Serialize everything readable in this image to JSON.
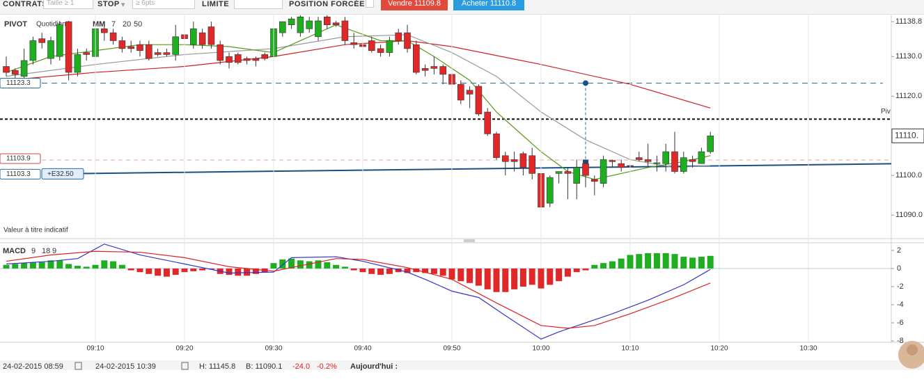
{
  "toolbar": {
    "contracts": "CONTRATS",
    "size": "Taille ≥ 1",
    "stop": "STOP",
    "stop_input": "≥ 6pts",
    "limit": "LIMITE",
    "forced": "POSITION FORCÉE",
    "sell": "Vendre 11109.8",
    "buy": "Acheter 11110.8"
  },
  "chart": {
    "pivot_label": "PIVOT",
    "pivot_period": "Quotidien",
    "ma_label": "MM",
    "note": "Valeur à titre indicatif",
    "ylim": [
      11084.6,
      11140.4
    ],
    "yticks": [
      {
        "value": 11138.8,
        "label": "11138.8"
      },
      {
        "value": 11130,
        "label": "11130.0"
      },
      {
        "value": 11120,
        "label": "11120.0"
      },
      {
        "value": 11100,
        "label": "11100.0"
      },
      {
        "value": 11090,
        "label": "11090.0"
      }
    ],
    "xticks": [
      {
        "value": 10,
        "label": "09:10"
      },
      {
        "value": 20,
        "label": "09:20"
      },
      {
        "value": 30,
        "label": "09:30"
      },
      {
        "value": 40,
        "label": "09:40"
      },
      {
        "value": 50,
        "label": "09:50"
      },
      {
        "value": 60,
        "label": "10:00"
      },
      {
        "value": 70,
        "label": "10:10"
      },
      {
        "value": 80,
        "label": "10:20"
      },
      {
        "value": 90,
        "label": "10:30"
      }
    ],
    "up_color": "#1fae1f",
    "down_color": "#e02828",
    "candles": [
      [
        11127.5,
        11130,
        11125,
        11126
      ],
      [
        11126.5,
        11127,
        11124.5,
        11125.5
      ],
      [
        11125,
        11132,
        11124.5,
        11129
      ],
      [
        11129,
        11135,
        11128,
        11134
      ],
      [
        11134.5,
        11136,
        11132,
        11133.5
      ],
      [
        11129.5,
        11135,
        11128,
        11134
      ],
      [
        11130,
        11139,
        11129,
        11138
      ],
      [
        11138.8,
        11139,
        11124,
        11126
      ],
      [
        11126,
        11132,
        11125,
        11130.5
      ],
      [
        11131,
        11132,
        11129,
        11130.5
      ],
      [
        11130,
        11138,
        11128,
        11137
      ],
      [
        11137,
        11138.8,
        11134,
        11136
      ],
      [
        11136,
        11137,
        11133,
        11134
      ],
      [
        11134,
        11135,
        11131,
        11132
      ],
      [
        11132.5,
        11134,
        11131,
        11132
      ],
      [
        11133,
        11134,
        11130,
        11131.5
      ],
      [
        11133,
        11134,
        11129,
        11129.5
      ],
      [
        11131,
        11132,
        11130,
        11130.5
      ],
      [
        11131,
        11132,
        11130,
        11130.5
      ],
      [
        11130.5,
        11138,
        11129,
        11135
      ],
      [
        11135.5,
        11138.8,
        11133,
        11134.5
      ],
      [
        11133,
        11138.8,
        11132,
        11137
      ],
      [
        11136,
        11137,
        11132,
        11133
      ],
      [
        11137.5,
        11138.8,
        11132,
        11133
      ],
      [
        11133,
        11134,
        11128,
        11129
      ],
      [
        11130,
        11131,
        11127,
        11128.5
      ],
      [
        11130.5,
        11131,
        11128,
        11128.5
      ],
      [
        11129.5,
        11130,
        11128,
        11129
      ],
      [
        11129.5,
        11130,
        11127.5,
        11129
      ],
      [
        11130.5,
        11131,
        11129,
        11129.5
      ],
      [
        11130,
        11138.8,
        11129,
        11137
      ],
      [
        11136,
        11138.8,
        11135,
        11138.8
      ],
      [
        11138,
        11140,
        11137,
        11139.5
      ],
      [
        11136,
        11141,
        11135,
        11140
      ],
      [
        11137,
        11140,
        11136,
        11139
      ],
      [
        11135,
        11140,
        11134,
        11139
      ],
      [
        11140,
        11141,
        11137,
        11138
      ],
      [
        11138.5,
        11139,
        11137.5,
        11138
      ],
      [
        11139,
        11140,
        11133,
        11134
      ],
      [
        11133.5,
        11136,
        11132,
        11133
      ],
      [
        11133,
        11134,
        11131,
        11132.5
      ],
      [
        11134,
        11135,
        11131,
        11131.5
      ],
      [
        11132,
        11133,
        11130,
        11131
      ],
      [
        11131,
        11135,
        11130,
        11134
      ],
      [
        11136,
        11137,
        11133,
        11134
      ],
      [
        11136,
        11138,
        11131,
        11132
      ],
      [
        11133,
        11134,
        11125.5,
        11126
      ],
      [
        11127,
        11128,
        11125,
        11126.5
      ],
      [
        11127.5,
        11130,
        11125.5,
        11127
      ],
      [
        11127.5,
        11128,
        11123,
        11125.5
      ],
      [
        11125.5,
        11126,
        11115.5,
        11123
      ],
      [
        11123,
        11124,
        11118,
        11119
      ],
      [
        11121.5,
        11122.5,
        11117,
        11120.5
      ],
      [
        11122.5,
        11123,
        11115,
        11115.5
      ],
      [
        11116,
        11117,
        11110,
        11110.5
      ],
      [
        11110.5,
        11111,
        11104,
        11104.5
      ],
      [
        11105,
        11106,
        11100,
        11103.5
      ],
      [
        11104,
        11106,
        11101,
        11103.5
      ],
      [
        11105.5,
        11106,
        11100,
        11102
      ],
      [
        11105,
        11107,
        11099,
        11100.5
      ],
      [
        11100.5,
        11102,
        11090.5,
        11092
      ],
      [
        11093,
        11100,
        11092,
        11099.5
      ],
      [
        11100.5,
        11101,
        11098,
        11101
      ],
      [
        11101,
        11102,
        11094,
        11100.5
      ],
      [
        11098,
        11104,
        11094,
        11102
      ],
      [
        11103,
        11104,
        11097,
        11100
      ],
      [
        11099,
        11100,
        11095,
        11098.5
      ],
      [
        11098,
        11105,
        11097,
        11104
      ],
      [
        11103.8,
        11104,
        11102,
        11103.5
      ],
      [
        11103,
        11104,
        11101,
        11102
      ],
      [
        11102.5,
        11103,
        11100,
        11102.3
      ],
      [
        11104.5,
        11106,
        11103.5,
        11104
      ],
      [
        11104,
        11108,
        11102,
        11103.5
      ],
      [
        11103,
        11105,
        11101,
        11103.2
      ],
      [
        11103,
        11108,
        11101,
        11106
      ],
      [
        11106,
        11111,
        11100.5,
        11101
      ],
      [
        11101,
        11106,
        11100.5,
        11104.5
      ],
      [
        11104,
        11105,
        11102,
        11103.5
      ],
      [
        11103,
        11107,
        11103,
        11106
      ],
      [
        11106,
        11111,
        11105.5,
        11110
      ]
    ],
    "ma": [
      {
        "period": 7,
        "color": "#5a9a1a",
        "x": [
          0,
          5,
          10,
          15,
          20,
          25,
          30,
          33,
          37,
          42,
          45,
          48,
          52,
          55,
          58,
          60,
          63,
          66,
          68,
          72,
          76,
          79
        ],
        "values": [
          11126,
          11130,
          11131.5,
          11133,
          11133,
          11132.5,
          11131,
          11134,
          11138,
          11134,
          11134,
          11130,
          11124,
          11116,
          11110,
          11106,
          11101,
          11099,
          11100,
          11102,
          11103.5,
          11105
        ]
      },
      {
        "period": 20,
        "color": "#999999",
        "x": [
          0,
          10,
          20,
          30,
          38,
          45,
          50,
          55,
          60,
          65,
          70,
          75,
          79
        ],
        "values": [
          11125,
          11128,
          11130.5,
          11132,
          11135,
          11135.5,
          11131,
          11125,
          11116,
          11109,
          11104,
          11102,
          11102.5
        ]
      },
      {
        "period": 50,
        "color": "#cc2222",
        "x": [
          0,
          10,
          20,
          30,
          38,
          45,
          50,
          60,
          70,
          79
        ],
        "values": [
          11124,
          11126,
          11127.5,
          11130,
          11133,
          11134,
          11132.5,
          11128,
          11123,
          11117
        ]
      }
    ],
    "levels": {
      "stop": 11123.3,
      "pivot": 11114.2,
      "pivot_tag": "Piv",
      "entry": 11103.9,
      "position": 11103.3,
      "position_pnl": "+E32.50",
      "last": "11110."
    }
  },
  "macd": {
    "label": "MACD",
    "params": [
      9,
      18,
      9
    ],
    "ylim": [
      -8.15,
      2.92
    ],
    "yticks": [
      2,
      0,
      -2,
      -4,
      -6,
      -8
    ],
    "histogram": [
      0.4,
      0.5,
      0.6,
      0.7,
      0.7,
      0.9,
      0.9,
      0.5,
      0.3,
      0.2,
      0.4,
      0.9,
      0.8,
      0.4,
      -0.2,
      -0.4,
      -0.6,
      -0.8,
      -0.9,
      -0.7,
      -0.4,
      -0.3,
      -0.2,
      -0.1,
      -0.6,
      -0.7,
      -0.8,
      -0.8,
      -0.6,
      -0.4,
      0.6,
      1.0,
      1.1,
      0.9,
      0.8,
      0.9,
      0.7,
      0.4,
      0.2,
      -0.2,
      -0.4,
      -0.6,
      -0.7,
      -0.6,
      -0.4,
      -0.5,
      -0.4,
      -0.5,
      -0.6,
      -0.8,
      -1.2,
      -1.4,
      -1.6,
      -1.9,
      -2.3,
      -2.6,
      -2.6,
      -2.3,
      -2.0,
      -1.8,
      -2.2,
      -1.8,
      -1.4,
      -0.9,
      -0.4,
      -0.2,
      0.4,
      0.6,
      0.8,
      1.1,
      1.5,
      1.6,
      1.7,
      1.7,
      1.7,
      1.6,
      1.3,
      1.2,
      1.3,
      1.4
    ],
    "lines": [
      {
        "color": "#3333cc",
        "x": [
          0,
          5,
          8,
          11,
          15,
          20,
          25,
          30,
          32,
          37,
          40,
          45,
          47,
          50,
          53,
          56,
          60,
          62,
          65,
          68,
          72,
          76,
          79
        ],
        "values": [
          0.5,
          0.8,
          1.1,
          2.7,
          1.5,
          0.5,
          -0.5,
          -0.4,
          1.2,
          1.3,
          0.8,
          -0.4,
          -1.2,
          -2.5,
          -3.2,
          -5.2,
          -7.8,
          -7.0,
          -6,
          -5,
          -3.5,
          -1.8,
          -0.1
        ]
      },
      {
        "color": "#dd2222",
        "x": [
          0,
          5,
          10,
          15,
          20,
          25,
          30,
          33,
          37,
          40,
          45,
          50,
          55,
          60,
          63,
          66,
          70,
          75,
          79
        ],
        "values": [
          0.8,
          1.5,
          1.9,
          1.8,
          1.2,
          0.2,
          -0.3,
          0.3,
          1.1,
          1.0,
          0.1,
          -1.2,
          -3.8,
          -6.3,
          -6.6,
          -6.3,
          -5,
          -3.2,
          -1.6
        ]
      }
    ]
  },
  "status": {
    "from": "24-02-2015 08:59",
    "to": "24-02-2015 10:39",
    "high": "H: 11145.8",
    "low": "B: 11090.1",
    "change": "-24.0",
    "change_pct": "-0.2%",
    "today": "Aujourd'hui :"
  }
}
